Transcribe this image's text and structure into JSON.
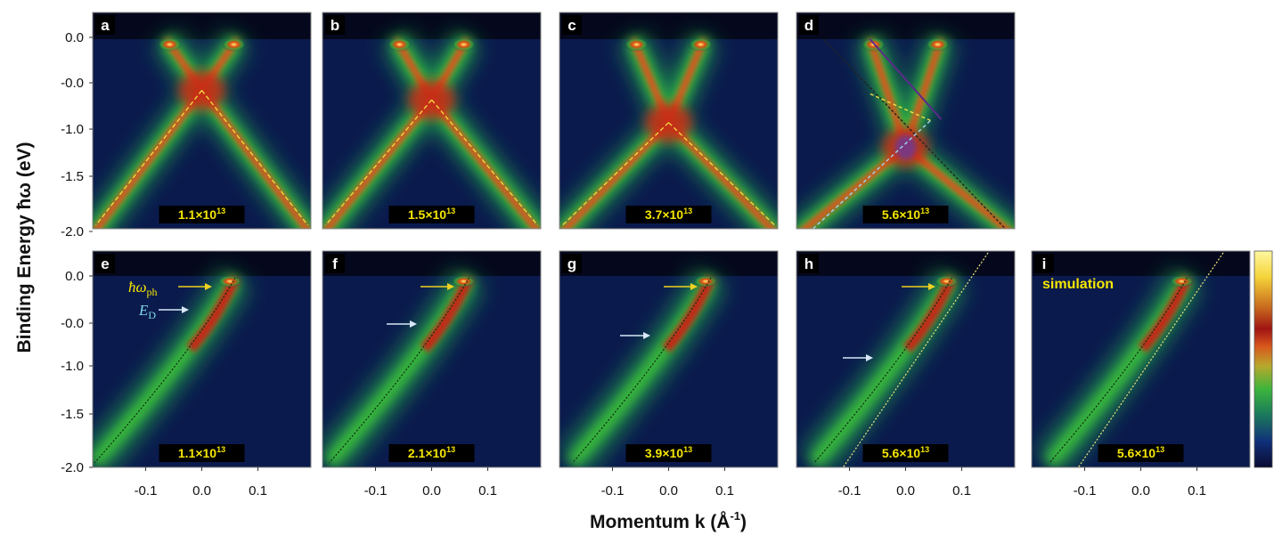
{
  "figure": {
    "y_axis_title": "Binding Energy ħω (eV)",
    "x_axis_title": "Momentum k (Å",
    "x_axis_title_sup": "-1",
    "x_axis_title_end": ")",
    "y_ticks": [
      "0.0",
      "-0.0",
      "-1.0",
      "-1.5",
      "-2.0"
    ],
    "x_ticks": [
      "-0.1",
      "0.0",
      "0.1"
    ],
    "annotation_phonon": "ħω",
    "annotation_phonon_sub": "ph",
    "annotation_dirac": "E",
    "annotation_dirac_sub": "D",
    "simulation_label": "simulation",
    "colorbar": [
      "#0a0a30",
      "#10307a",
      "#1c7d5a",
      "#3cb43c",
      "#b9a82c",
      "#d8561c",
      "#a01414",
      "#c86a1e",
      "#f5d43a",
      "#fff8a0"
    ]
  },
  "panels_top": [
    {
      "letter": "a",
      "density": "1.1×10",
      "exp": "13",
      "dirac_frac": 0.27,
      "crossing": 0.5,
      "style": "dirac"
    },
    {
      "letter": "b",
      "density": "1.5×10",
      "exp": "13",
      "dirac_frac": 0.32,
      "crossing": 0.5,
      "style": "dirac-noisy"
    },
    {
      "letter": "c",
      "density": "3.7×10",
      "exp": "13",
      "dirac_frac": 0.44,
      "crossing": 0.5,
      "style": "dirac"
    },
    {
      "letter": "d",
      "density": "5.6×10",
      "exp": "13",
      "dirac_frac": 0.57,
      "crossing": 0.5,
      "style": "dirac-fit"
    }
  ],
  "panels_bottom": [
    {
      "letter": "e",
      "density": "1.1×10",
      "exp": "13",
      "style": "branch"
    },
    {
      "letter": "f",
      "density": "2.1×10",
      "exp": "13",
      "style": "branch"
    },
    {
      "letter": "g",
      "density": "3.9×10",
      "exp": "13",
      "style": "branch"
    },
    {
      "letter": "h",
      "density": "5.6×10",
      "exp": "13",
      "style": "branch"
    },
    {
      "letter": "i",
      "density": "5.6×10",
      "exp": "13",
      "style": "simulation"
    }
  ]
}
